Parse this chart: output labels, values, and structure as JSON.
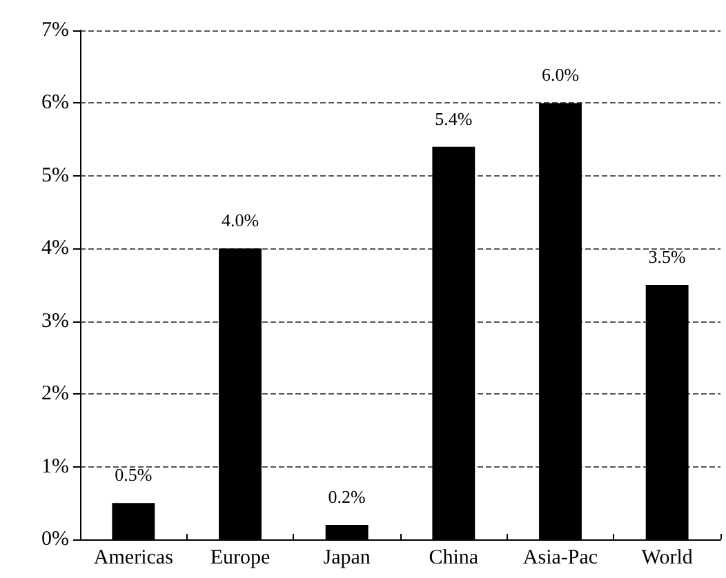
{
  "chart_data": {
    "type": "bar",
    "categories": [
      "Americas",
      "Europe",
      "Japan",
      "China",
      "Asia-Pac",
      "World"
    ],
    "values": [
      0.5,
      4.0,
      0.2,
      5.4,
      6.0,
      3.5
    ],
    "color": "#000000",
    "value_labels": [
      "0.5%",
      "4.0%",
      "0.2%",
      "5.4%",
      "6.0%",
      "3.5%"
    ],
    "ylim": [
      0,
      7
    ],
    "yticks": [
      {
        "value": 0,
        "label": "0%"
      },
      {
        "value": 1,
        "label": "1%"
      },
      {
        "value": 2,
        "label": "2%"
      },
      {
        "value": 3,
        "label": "3%"
      },
      {
        "value": 4,
        "label": "4%"
      },
      {
        "value": 5,
        "label": "5%"
      },
      {
        "value": 6,
        "label": "6%"
      },
      {
        "value": 7,
        "label": "7%"
      }
    ],
    "grid": "y"
  }
}
